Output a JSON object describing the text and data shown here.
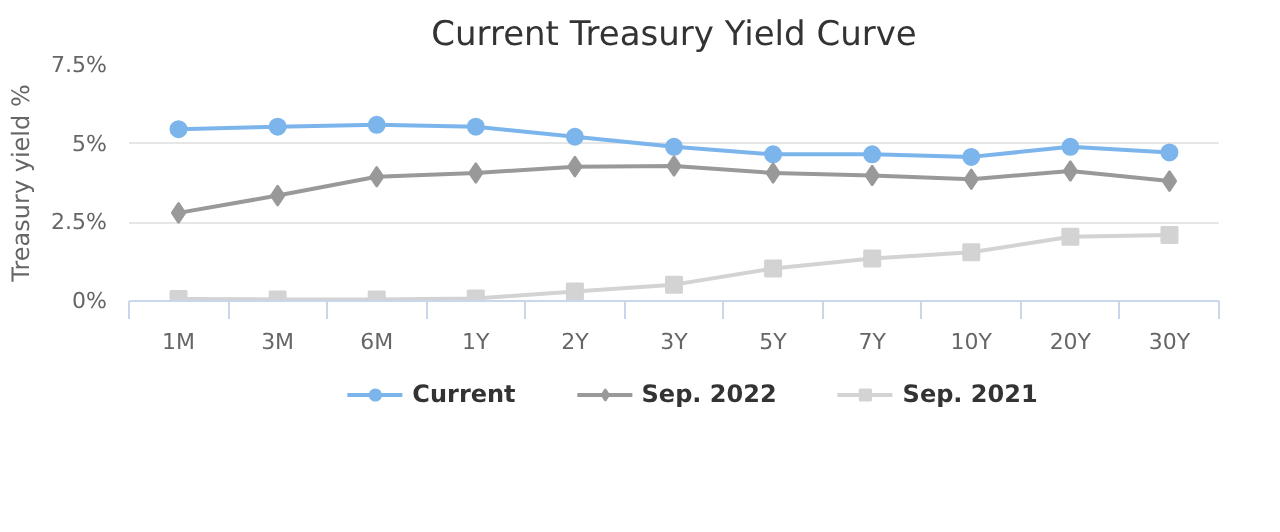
{
  "chart_data": {
    "type": "line",
    "title": "Current Treasury Yield Curve",
    "ylabel": "Treasury yield %",
    "categories": [
      "1M",
      "3M",
      "6M",
      "1Y",
      "2Y",
      "3Y",
      "5Y",
      "7Y",
      "10Y",
      "20Y",
      "30Y"
    ],
    "ylim": [
      0,
      7.5
    ],
    "yticks": [
      {
        "value": 0,
        "label": "0%"
      },
      {
        "value": 2.5,
        "label": "2.5%"
      },
      {
        "value": 5,
        "label": "5%"
      },
      {
        "value": 7.5,
        "label": "7.5%"
      }
    ],
    "grid": "y",
    "legend": "bottom",
    "series": [
      {
        "name": "Current",
        "color": "#7cb5ec",
        "marker": "circle",
        "values": [
          5.46,
          5.54,
          5.6,
          5.54,
          5.22,
          4.9,
          4.66,
          4.66,
          4.58,
          4.9,
          4.72
        ]
      },
      {
        "name": "Sep. 2022",
        "color": "#999999",
        "marker": "diamond",
        "values": [
          2.8,
          3.35,
          3.95,
          4.07,
          4.27,
          4.29,
          4.07,
          3.99,
          3.87,
          4.13,
          3.81
        ]
      },
      {
        "name": "Sep. 2021",
        "color": "#d3d3d3",
        "marker": "square",
        "values": [
          0.06,
          0.05,
          0.05,
          0.08,
          0.3,
          0.52,
          1.03,
          1.35,
          1.55,
          2.04,
          2.1
        ]
      }
    ]
  }
}
